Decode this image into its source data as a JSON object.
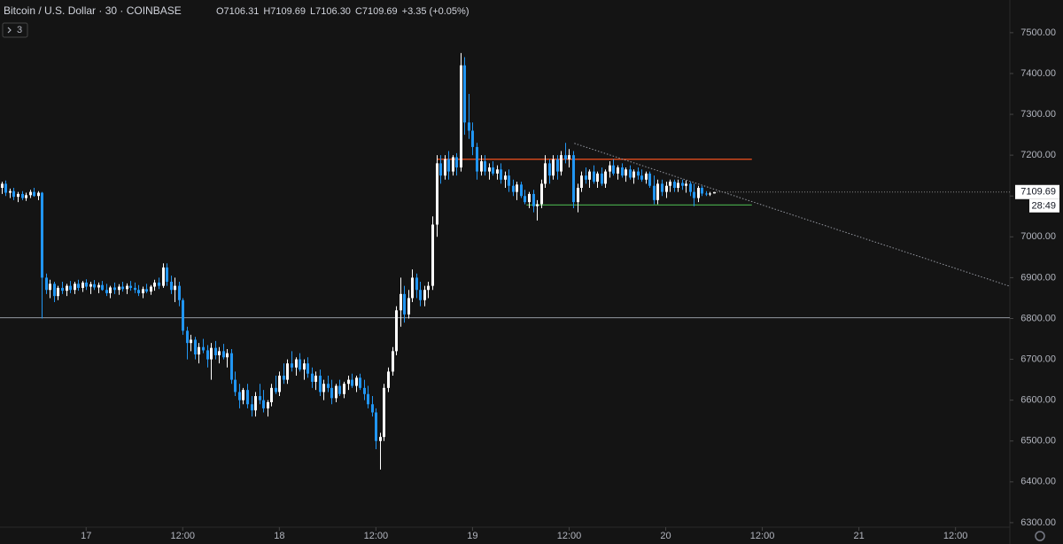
{
  "chart_data": {
    "type": "candlestick",
    "symbol": "Bitcoin / U.S. Dollar · 30 · COINBASE",
    "legend_items": [
      "O7106.31",
      "H7109.69",
      "L7106.30",
      "C7109.69",
      "+3.35 (+0.05%)"
    ],
    "indicator_count": "3",
    "price_label": "7109.69",
    "countdown": "28:49",
    "up_color": "#ffffff",
    "down_color": "#2196f3",
    "ylim": [
      6289,
      7580
    ],
    "yticks": [
      {
        "value": 6300,
        "label": "6300.00"
      },
      {
        "value": 6400,
        "label": "6400.00"
      },
      {
        "value": 6500,
        "label": "6500.00"
      },
      {
        "value": 6600,
        "label": "6600.00"
      },
      {
        "value": 6700,
        "label": "6700.00"
      },
      {
        "value": 6800,
        "label": "6800.00"
      },
      {
        "value": 6900,
        "label": "6900.00"
      },
      {
        "value": 7000,
        "label": "7000.00"
      },
      {
        "value": 7100,
        "label": "7100.00"
      },
      {
        "value": 7200,
        "label": "7200.00"
      },
      {
        "value": 7300,
        "label": "7300.00"
      },
      {
        "value": 7400,
        "label": "7400.00"
      },
      {
        "value": 7500,
        "label": "7500.00"
      }
    ],
    "xlim": [
      -0.4,
      250.5
    ],
    "xticks": [
      {
        "value": 21,
        "label": "17"
      },
      {
        "value": 45,
        "label": "12:00"
      },
      {
        "value": 69,
        "label": "18"
      },
      {
        "value": 93,
        "label": "12:00"
      },
      {
        "value": 117,
        "label": "19"
      },
      {
        "value": 141,
        "label": "12:00"
      },
      {
        "value": 165,
        "label": "20"
      },
      {
        "value": 189,
        "label": "12:00"
      },
      {
        "value": 213,
        "label": "21"
      },
      {
        "value": 237,
        "label": "12:00"
      }
    ],
    "drawings": [
      {
        "kind": "horizontal",
        "price": 6802,
        "color": "#9598a1"
      },
      {
        "kind": "segment",
        "x": [
          108.2,
          186.4
        ],
        "y": [
          7190,
          7190
        ],
        "color": "#f4511e"
      },
      {
        "kind": "segment",
        "x": [
          130.4,
          186.4
        ],
        "y": [
          7078,
          7078
        ],
        "color": "#43a047"
      },
      {
        "kind": "dotted",
        "x": [
          142.3,
          250.5
        ],
        "y": [
          7229,
          6879
        ],
        "color": "#9598a1"
      }
    ],
    "candles": [
      [
        7120,
        7135,
        7105,
        7130
      ],
      [
        7130,
        7138,
        7100,
        7108
      ],
      [
        7108,
        7118,
        7095,
        7112
      ],
      [
        7112,
        7120,
        7090,
        7098
      ],
      [
        7098,
        7110,
        7085,
        7105
      ],
      [
        7105,
        7112,
        7090,
        7095
      ],
      [
        7095,
        7108,
        7088,
        7102
      ],
      [
        7102,
        7115,
        7095,
        7110
      ],
      [
        7110,
        7120,
        7098,
        7100
      ],
      [
        7100,
        7112,
        7090,
        7108
      ],
      [
        7108,
        7110,
        6800,
        6900
      ],
      [
        6900,
        6910,
        6860,
        6870
      ],
      [
        6870,
        6895,
        6850,
        6885
      ],
      [
        6885,
        6890,
        6840,
        6855
      ],
      [
        6855,
        6880,
        6845,
        6875
      ],
      [
        6875,
        6890,
        6860,
        6868
      ],
      [
        6868,
        6885,
        6855,
        6880
      ],
      [
        6880,
        6892,
        6862,
        6870
      ],
      [
        6870,
        6890,
        6860,
        6885
      ],
      [
        6885,
        6895,
        6868,
        6875
      ],
      [
        6875,
        6892,
        6865,
        6888
      ],
      [
        6888,
        6896,
        6870,
        6878
      ],
      [
        6878,
        6890,
        6860,
        6884
      ],
      [
        6884,
        6894,
        6870,
        6876
      ],
      [
        6876,
        6888,
        6862,
        6882
      ],
      [
        6882,
        6892,
        6868,
        6870
      ],
      [
        6870,
        6885,
        6855,
        6862
      ],
      [
        6862,
        6880,
        6850,
        6876
      ],
      [
        6876,
        6888,
        6860,
        6870
      ],
      [
        6870,
        6884,
        6858,
        6878
      ],
      [
        6878,
        6890,
        6866,
        6872
      ],
      [
        6872,
        6886,
        6860,
        6880
      ],
      [
        6880,
        6892,
        6868,
        6875
      ],
      [
        6875,
        6888,
        6862,
        6870
      ],
      [
        6870,
        6882,
        6855,
        6862
      ],
      [
        6862,
        6878,
        6850,
        6872
      ],
      [
        6872,
        6885,
        6862,
        6866
      ],
      [
        6866,
        6882,
        6858,
        6878
      ],
      [
        6878,
        6895,
        6868,
        6888
      ],
      [
        6888,
        6900,
        6872,
        6880
      ],
      [
        6880,
        6935,
        6875,
        6925
      ],
      [
        6925,
        6935,
        6880,
        6890
      ],
      [
        6890,
        6905,
        6860,
        6870
      ],
      [
        6870,
        6900,
        6840,
        6880
      ],
      [
        6880,
        6890,
        6830,
        6845
      ],
      [
        6845,
        6850,
        6760,
        6770
      ],
      [
        6770,
        6780,
        6700,
        6740
      ],
      [
        6740,
        6760,
        6720,
        6748
      ],
      [
        6748,
        6755,
        6700,
        6712
      ],
      [
        6712,
        6740,
        6690,
        6730
      ],
      [
        6730,
        6750,
        6715,
        6722
      ],
      [
        6722,
        6735,
        6680,
        6700
      ],
      [
        6700,
        6740,
        6650,
        6728
      ],
      [
        6728,
        6745,
        6700,
        6710
      ],
      [
        6710,
        6730,
        6690,
        6720
      ],
      [
        6720,
        6738,
        6700,
        6705
      ],
      [
        6705,
        6725,
        6680,
        6715
      ],
      [
        6715,
        6725,
        6640,
        6650
      ],
      [
        6650,
        6670,
        6610,
        6620
      ],
      [
        6620,
        6640,
        6580,
        6600
      ],
      [
        6600,
        6630,
        6590,
        6625
      ],
      [
        6625,
        6640,
        6580,
        6590
      ],
      [
        6590,
        6610,
        6560,
        6575
      ],
      [
        6575,
        6620,
        6560,
        6610
      ],
      [
        6610,
        6640,
        6590,
        6600
      ],
      [
        6600,
        6625,
        6570,
        6580
      ],
      [
        6580,
        6600,
        6560,
        6595
      ],
      [
        6595,
        6640,
        6585,
        6630
      ],
      [
        6630,
        6660,
        6615,
        6620
      ],
      [
        6620,
        6670,
        6610,
        6660
      ],
      [
        6660,
        6690,
        6640,
        6650
      ],
      [
        6650,
        6700,
        6640,
        6690
      ],
      [
        6690,
        6720,
        6670,
        6680
      ],
      [
        6680,
        6705,
        6660,
        6700
      ],
      [
        6700,
        6715,
        6670,
        6675
      ],
      [
        6675,
        6700,
        6650,
        6690
      ],
      [
        6690,
        6705,
        6655,
        6665
      ],
      [
        6665,
        6680,
        6630,
        6645
      ],
      [
        6645,
        6670,
        6625,
        6660
      ],
      [
        6660,
        6675,
        6610,
        6620
      ],
      [
        6620,
        6650,
        6600,
        6640
      ],
      [
        6640,
        6660,
        6620,
        6630
      ],
      [
        6630,
        6650,
        6590,
        6605
      ],
      [
        6605,
        6640,
        6595,
        6635
      ],
      [
        6635,
        6650,
        6610,
        6615
      ],
      [
        6615,
        6645,
        6605,
        6640
      ],
      [
        6640,
        6660,
        6625,
        6650
      ],
      [
        6650,
        6665,
        6630,
        6635
      ],
      [
        6635,
        6660,
        6620,
        6655
      ],
      [
        6655,
        6665,
        6625,
        6630
      ],
      [
        6630,
        6650,
        6600,
        6615
      ],
      [
        6615,
        6635,
        6580,
        6590
      ],
      [
        6590,
        6610,
        6560,
        6570
      ],
      [
        6570,
        6580,
        6480,
        6500
      ],
      [
        6500,
        6520,
        6430,
        6510
      ],
      [
        6510,
        6640,
        6500,
        6630
      ],
      [
        6630,
        6680,
        6620,
        6670
      ],
      [
        6670,
        6730,
        6660,
        6720
      ],
      [
        6720,
        6830,
        6710,
        6820
      ],
      [
        6820,
        6900,
        6780,
        6860
      ],
      [
        6860,
        6880,
        6790,
        6810
      ],
      [
        6810,
        6870,
        6800,
        6850
      ],
      [
        6850,
        6920,
        6840,
        6900
      ],
      [
        6900,
        6910,
        6850,
        6870
      ],
      [
        6870,
        6890,
        6830,
        6845
      ],
      [
        6845,
        6880,
        6830,
        6870
      ],
      [
        6870,
        6890,
        6850,
        6880
      ],
      [
        6880,
        7050,
        6870,
        7030
      ],
      [
        7030,
        7200,
        7000,
        7180
      ],
      [
        7180,
        7200,
        7130,
        7150
      ],
      [
        7150,
        7200,
        7140,
        7190
      ],
      [
        7190,
        7210,
        7140,
        7160
      ],
      [
        7160,
        7200,
        7150,
        7195
      ],
      [
        7195,
        7205,
        7150,
        7170
      ],
      [
        7170,
        7450,
        7160,
        7420
      ],
      [
        7420,
        7440,
        7250,
        7280
      ],
      [
        7280,
        7350,
        7240,
        7260
      ],
      [
        7260,
        7280,
        7200,
        7220
      ],
      [
        7220,
        7230,
        7140,
        7160
      ],
      [
        7160,
        7200,
        7150,
        7185
      ],
      [
        7185,
        7200,
        7150,
        7160
      ],
      [
        7160,
        7180,
        7140,
        7170
      ],
      [
        7170,
        7185,
        7150,
        7155
      ],
      [
        7155,
        7175,
        7140,
        7165
      ],
      [
        7165,
        7180,
        7130,
        7140
      ],
      [
        7140,
        7160,
        7120,
        7150
      ],
      [
        7150,
        7165,
        7110,
        7125
      ],
      [
        7125,
        7140,
        7100,
        7110
      ],
      [
        7110,
        7135,
        7090,
        7128
      ],
      [
        7128,
        7135,
        7095,
        7100
      ],
      [
        7100,
        7115,
        7080,
        7085
      ],
      [
        7085,
        7110,
        7070,
        7105
      ],
      [
        7105,
        7115,
        7060,
        7075
      ],
      [
        7075,
        7090,
        7040,
        7080
      ],
      [
        7080,
        7140,
        7070,
        7130
      ],
      [
        7130,
        7200,
        7120,
        7180
      ],
      [
        7180,
        7190,
        7130,
        7150
      ],
      [
        7150,
        7200,
        7140,
        7190
      ],
      [
        7190,
        7200,
        7140,
        7160
      ],
      [
        7160,
        7210,
        7150,
        7200
      ],
      [
        7200,
        7230,
        7180,
        7190
      ],
      [
        7190,
        7215,
        7170,
        7200
      ],
      [
        7200,
        7210,
        7070,
        7085
      ],
      [
        7085,
        7130,
        7060,
        7120
      ],
      [
        7120,
        7160,
        7110,
        7150
      ],
      [
        7150,
        7170,
        7130,
        7140
      ],
      [
        7140,
        7165,
        7120,
        7160
      ],
      [
        7160,
        7175,
        7130,
        7135
      ],
      [
        7135,
        7160,
        7120,
        7155
      ],
      [
        7155,
        7170,
        7125,
        7130
      ],
      [
        7130,
        7165,
        7120,
        7160
      ],
      [
        7160,
        7185,
        7145,
        7175
      ],
      [
        7175,
        7190,
        7150,
        7155
      ],
      [
        7155,
        7175,
        7140,
        7170
      ],
      [
        7170,
        7180,
        7145,
        7150
      ],
      [
        7150,
        7170,
        7135,
        7165
      ],
      [
        7165,
        7175,
        7140,
        7145
      ],
      [
        7145,
        7165,
        7130,
        7160
      ],
      [
        7160,
        7170,
        7140,
        7150
      ],
      [
        7150,
        7165,
        7135,
        7140
      ],
      [
        7140,
        7160,
        7130,
        7155
      ],
      [
        7155,
        7160,
        7120,
        7125
      ],
      [
        7125,
        7150,
        7080,
        7090
      ],
      [
        7090,
        7140,
        7080,
        7130
      ],
      [
        7130,
        7140,
        7100,
        7110
      ],
      [
        7110,
        7135,
        7095,
        7125
      ],
      [
        7125,
        7140,
        7110,
        7135
      ],
      [
        7135,
        7140,
        7110,
        7120
      ],
      [
        7120,
        7140,
        7110,
        7132
      ],
      [
        7132,
        7140,
        7115,
        7125
      ],
      [
        7125,
        7138,
        7108,
        7130
      ],
      [
        7130,
        7135,
        7100,
        7110
      ],
      [
        7110,
        7130,
        7075,
        7095
      ],
      [
        7095,
        7125,
        7085,
        7120
      ],
      [
        7120,
        7125,
        7100,
        7106
      ],
      [
        7106,
        7112,
        7100,
        7104
      ],
      [
        7104,
        7110,
        7100,
        7106
      ],
      [
        7106.31,
        7109.69,
        7106.3,
        7109.69
      ]
    ]
  }
}
